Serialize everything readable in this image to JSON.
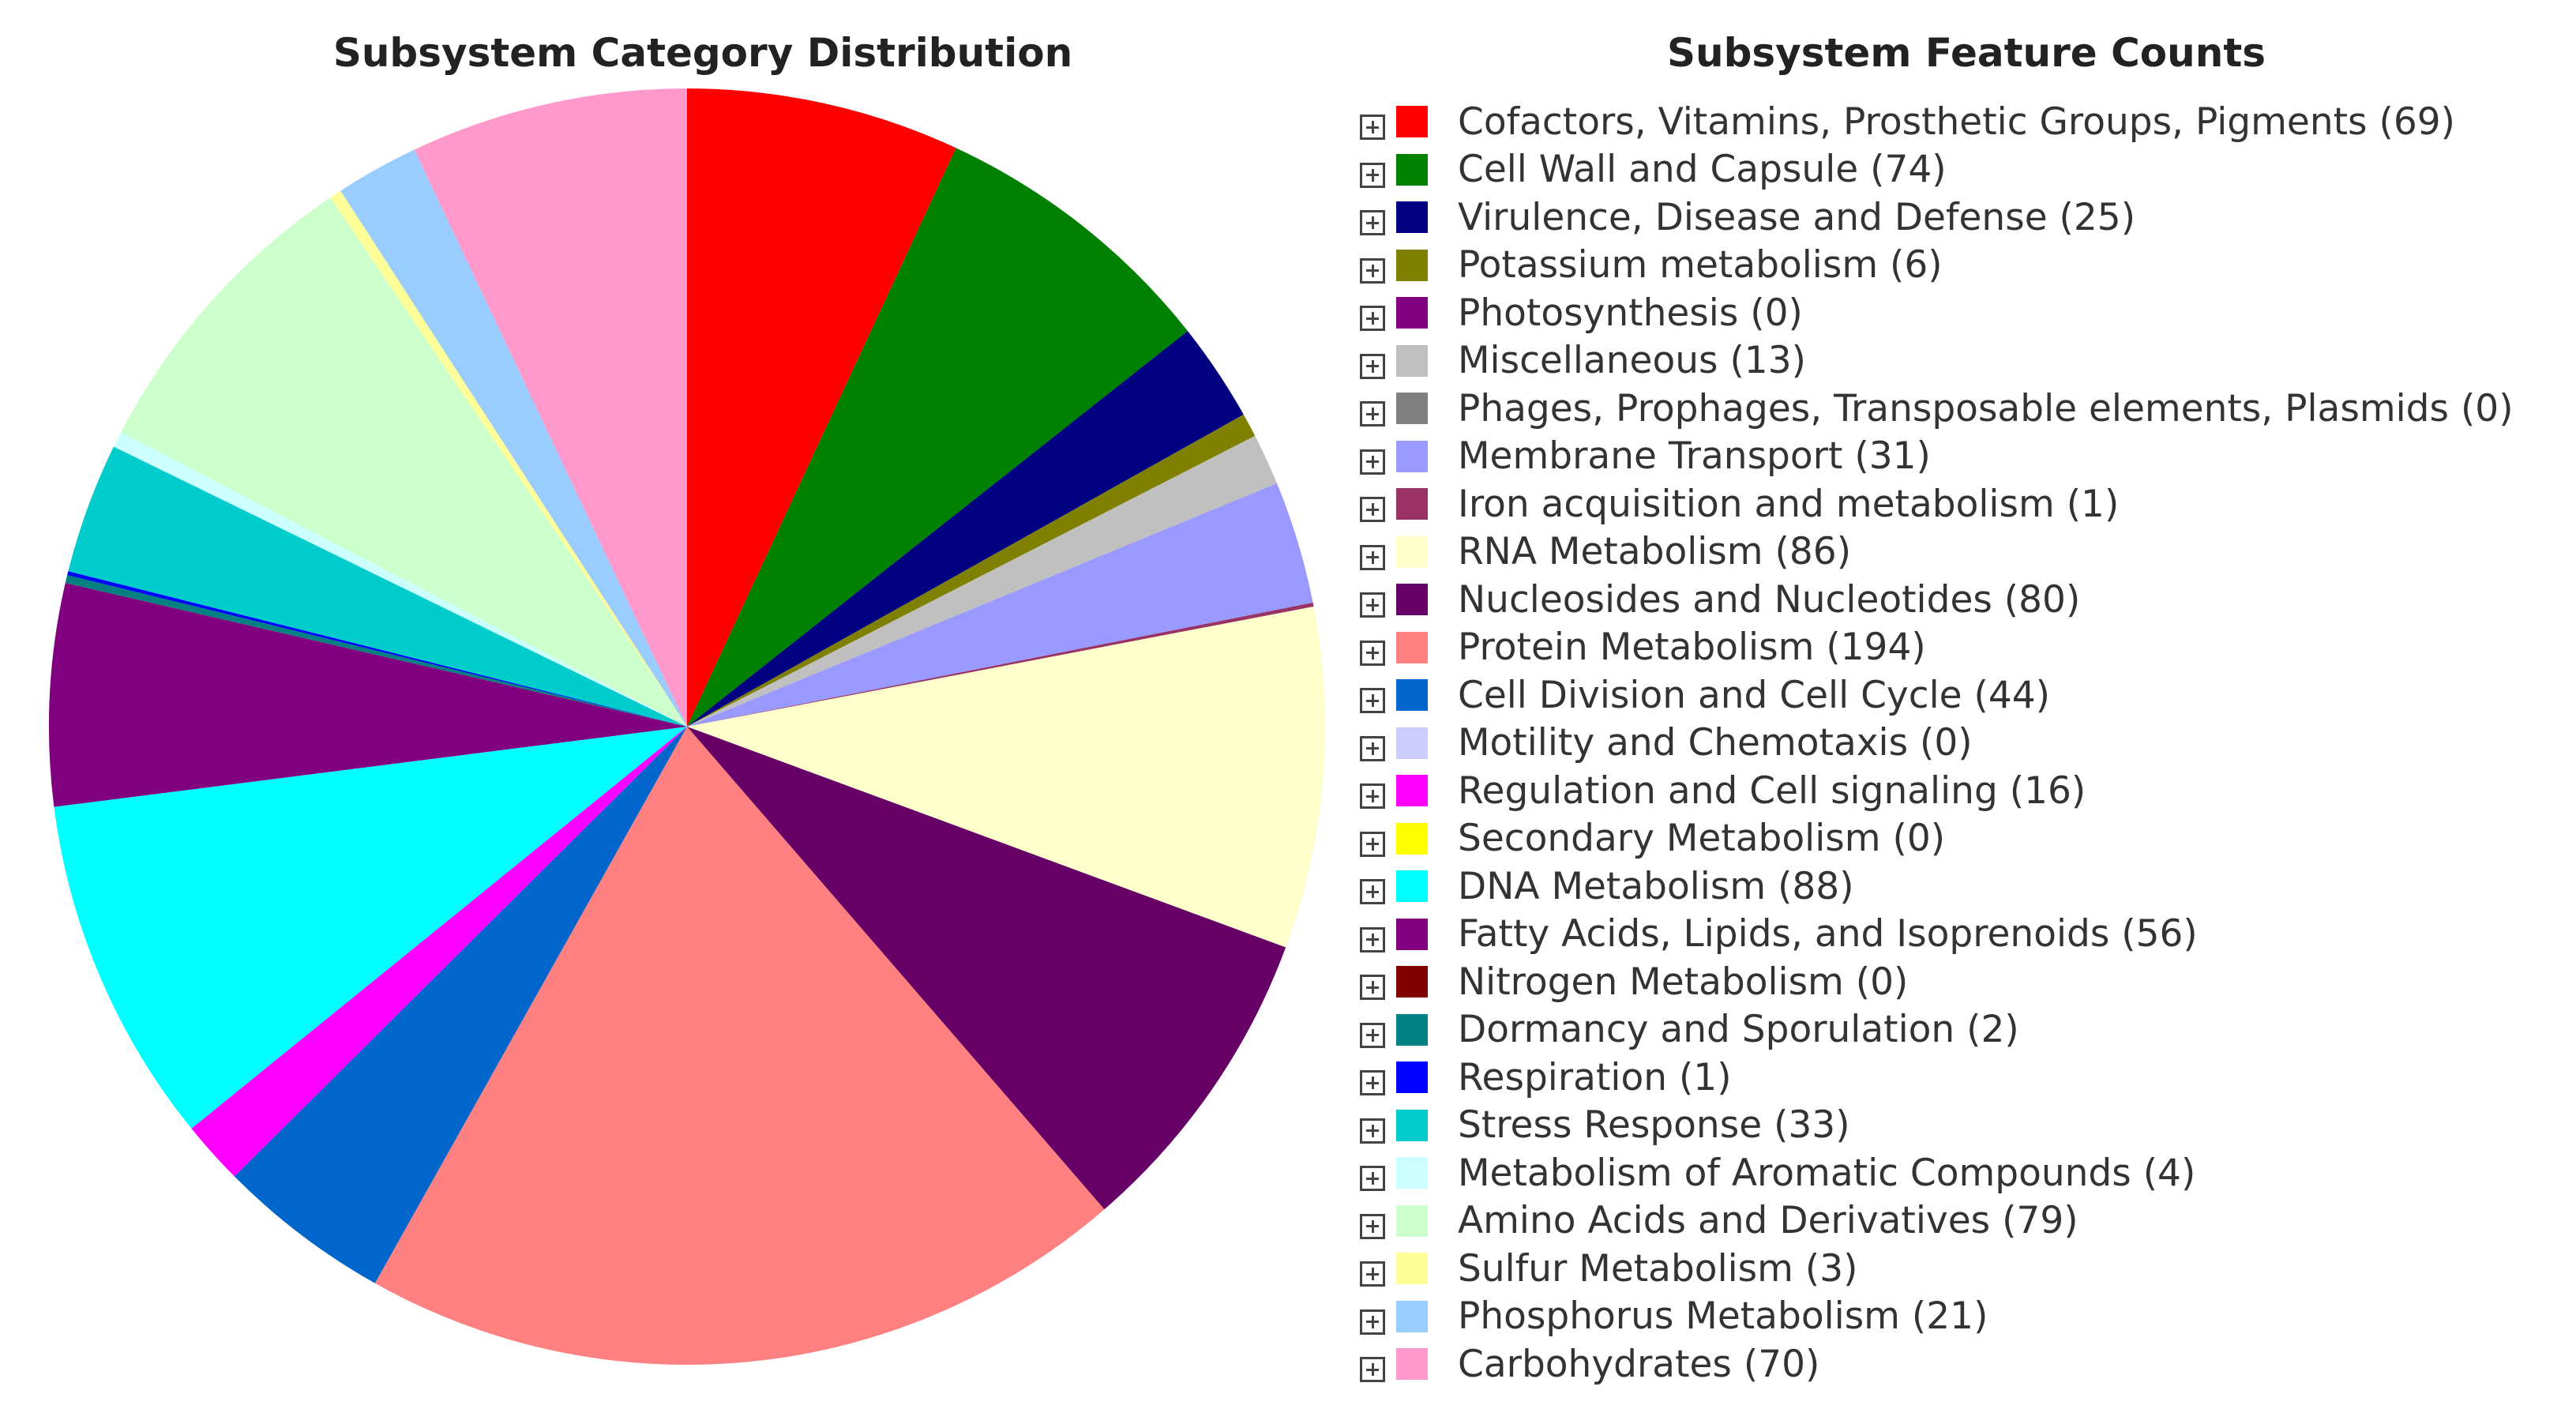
{
  "pie_title": "Subsystem Category Distribution",
  "legend_title": "Subsystem Feature Counts",
  "chart_data": {
    "type": "pie",
    "title": "Subsystem Category Distribution",
    "legend_title": "Subsystem Feature Counts",
    "start": "top",
    "direction": "clockwise",
    "slices": [
      {
        "name": "Cofactors, Vitamins, Prosthetic Groups, Pigments",
        "value": 69,
        "color": "#ff0000"
      },
      {
        "name": "Cell Wall and Capsule",
        "value": 74,
        "color": "#008000"
      },
      {
        "name": "Virulence, Disease and Defense",
        "value": 25,
        "color": "#000080"
      },
      {
        "name": "Potassium metabolism",
        "value": 6,
        "color": "#808000"
      },
      {
        "name": "Photosynthesis",
        "value": 0,
        "color": "#800080"
      },
      {
        "name": "Miscellaneous",
        "value": 13,
        "color": "#c0c0c0"
      },
      {
        "name": "Phages, Prophages, Transposable elements, Plasmids",
        "value": 0,
        "color": "#808080"
      },
      {
        "name": "Membrane Transport",
        "value": 31,
        "color": "#9999ff"
      },
      {
        "name": "Iron acquisition and metabolism",
        "value": 1,
        "color": "#993366"
      },
      {
        "name": "RNA Metabolism",
        "value": 86,
        "color": "#ffffcc"
      },
      {
        "name": "Nucleosides and Nucleotides",
        "value": 80,
        "color": "#660066"
      },
      {
        "name": "Protein Metabolism",
        "value": 194,
        "color": "#ff8080"
      },
      {
        "name": "Cell Division and Cell Cycle",
        "value": 44,
        "color": "#0066cc"
      },
      {
        "name": "Motility and Chemotaxis",
        "value": 0,
        "color": "#ccccff"
      },
      {
        "name": "Regulation and Cell signaling",
        "value": 16,
        "color": "#ff00ff"
      },
      {
        "name": "Secondary Metabolism",
        "value": 0,
        "color": "#ffff00"
      },
      {
        "name": "DNA Metabolism",
        "value": 88,
        "color": "#00ffff"
      },
      {
        "name": "Fatty Acids, Lipids, and Isoprenoids",
        "value": 56,
        "color": "#800080"
      },
      {
        "name": "Nitrogen Metabolism",
        "value": 0,
        "color": "#800000"
      },
      {
        "name": "Dormancy and Sporulation",
        "value": 2,
        "color": "#008080"
      },
      {
        "name": "Respiration",
        "value": 1,
        "color": "#0000ff"
      },
      {
        "name": "Stress Response",
        "value": 33,
        "color": "#00cccc"
      },
      {
        "name": "Metabolism of Aromatic Compounds",
        "value": 4,
        "color": "#ccffff"
      },
      {
        "name": "Amino Acids and Derivatives",
        "value": 79,
        "color": "#ccffcc"
      },
      {
        "name": "Sulfur Metabolism",
        "value": 3,
        "color": "#ffff99"
      },
      {
        "name": "Phosphorus Metabolism",
        "value": 21,
        "color": "#99ccff"
      },
      {
        "name": "Carbohydrates",
        "value": 70,
        "color": "#ff99cc"
      }
    ]
  }
}
